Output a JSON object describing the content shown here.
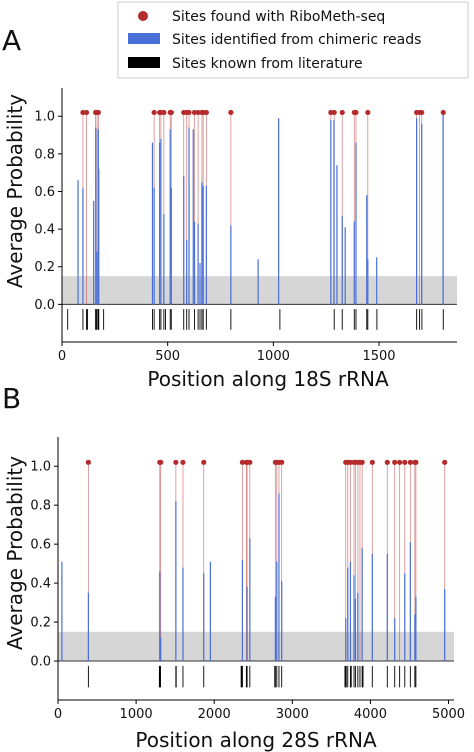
{
  "legend": {
    "items": [
      {
        "label": "Sites found with RiboMeth-seq",
        "color": "#b52a2a",
        "marker": "dot"
      },
      {
        "label": "Sites identified from chimeric reads",
        "color": "#4a6fd6",
        "marker": "bar"
      },
      {
        "label": "Sites known from literature",
        "color": "#000000",
        "marker": "bar"
      }
    ]
  },
  "chart_data": [
    {
      "type": "bar",
      "panel_label": "A",
      "xlabel": "Position along 18S rRNA",
      "ylabel": "Average Probability",
      "xlim": [
        0,
        1869
      ],
      "ylim": [
        -0.2,
        1.15
      ],
      "x_ticks": [
        0,
        500,
        1000,
        1500
      ],
      "y_ticks": [
        0.0,
        0.2,
        0.4,
        0.6,
        0.8,
        1.0
      ],
      "y_tick_labels": [
        "0.0",
        "0.2",
        "0.4",
        "0.6",
        "0.8",
        "1.0"
      ],
      "threshold_band": [
        0,
        0.15
      ],
      "chimeric": [
        {
          "x": 76,
          "y": 0.66
        },
        {
          "x": 99,
          "y": 0.62
        },
        {
          "x": 150,
          "y": 0.55
        },
        {
          "x": 160,
          "y": 0.94
        },
        {
          "x": 166,
          "y": 0.28
        },
        {
          "x": 172,
          "y": 0.93
        },
        {
          "x": 174,
          "y": 0.72
        },
        {
          "x": 428,
          "y": 0.86
        },
        {
          "x": 436,
          "y": 0.62
        },
        {
          "x": 462,
          "y": 0.86
        },
        {
          "x": 468,
          "y": 0.88
        },
        {
          "x": 482,
          "y": 0.48
        },
        {
          "x": 512,
          "y": 0.93
        },
        {
          "x": 517,
          "y": 0.62
        },
        {
          "x": 576,
          "y": 0.68
        },
        {
          "x": 590,
          "y": 0.34
        },
        {
          "x": 601,
          "y": 0.94
        },
        {
          "x": 621,
          "y": 0.93
        },
        {
          "x": 627,
          "y": 0.44
        },
        {
          "x": 644,
          "y": 0.43
        },
        {
          "x": 653,
          "y": 0.22
        },
        {
          "x": 662,
          "y": 0.65
        },
        {
          "x": 668,
          "y": 0.63
        },
        {
          "x": 683,
          "y": 0.63
        },
        {
          "x": 799,
          "y": 0.42
        },
        {
          "x": 928,
          "y": 0.24
        },
        {
          "x": 1025,
          "y": 0.99
        },
        {
          "x": 1272,
          "y": 0.98
        },
        {
          "x": 1287,
          "y": 0.98
        },
        {
          "x": 1301,
          "y": 0.74
        },
        {
          "x": 1326,
          "y": 0.47
        },
        {
          "x": 1340,
          "y": 0.41
        },
        {
          "x": 1383,
          "y": 0.44
        },
        {
          "x": 1391,
          "y": 0.86
        },
        {
          "x": 1442,
          "y": 0.58
        },
        {
          "x": 1447,
          "y": 0.24
        },
        {
          "x": 1489,
          "y": 0.25
        },
        {
          "x": 1678,
          "y": 0.99
        },
        {
          "x": 1702,
          "y": 0.96
        },
        {
          "x": 1803,
          "y": 1.01
        }
      ],
      "ribometh": [
        99,
        116,
        159,
        166,
        172,
        436,
        462,
        468,
        482,
        512,
        517,
        576,
        590,
        601,
        627,
        644,
        662,
        668,
        683,
        799,
        1272,
        1288,
        1326,
        1383,
        1391,
        1447,
        1678,
        1692,
        1702,
        1804
      ],
      "literature": [
        27,
        99,
        116,
        121,
        159,
        162,
        166,
        172,
        174,
        197,
        428,
        436,
        462,
        468,
        482,
        490,
        512,
        517,
        576,
        590,
        601,
        627,
        644,
        653,
        662,
        668,
        683,
        799,
        1031,
        1288,
        1326,
        1383,
        1391,
        1442,
        1447,
        1490,
        1678,
        1692,
        1703,
        1804
      ]
    },
    {
      "type": "bar",
      "panel_label": "B",
      "xlabel": "Position along 28S rRNA",
      "ylabel": "Average Probability",
      "xlim": [
        0,
        5070
      ],
      "ylim": [
        -0.2,
        1.15
      ],
      "x_ticks": [
        0,
        1000,
        2000,
        3000,
        4000,
        5000
      ],
      "y_ticks": [
        0.0,
        0.2,
        0.4,
        0.6,
        0.8,
        1.0
      ],
      "y_tick_labels": [
        "0.0",
        "0.2",
        "0.4",
        "0.6",
        "0.8",
        "1.0"
      ],
      "threshold_band": [
        0,
        0.15
      ],
      "chimeric": [
        {
          "x": 50,
          "y": 0.51
        },
        {
          "x": 389,
          "y": 0.35
        },
        {
          "x": 1303,
          "y": 0.46
        },
        {
          "x": 1315,
          "y": 0.12
        },
        {
          "x": 1509,
          "y": 0.82
        },
        {
          "x": 1600,
          "y": 0.48
        },
        {
          "x": 1866,
          "y": 0.45
        },
        {
          "x": 1951,
          "y": 0.51
        },
        {
          "x": 2361,
          "y": 0.52
        },
        {
          "x": 2421,
          "y": 0.38
        },
        {
          "x": 2456,
          "y": 0.63
        },
        {
          "x": 2783,
          "y": 0.33
        },
        {
          "x": 2801,
          "y": 0.51
        },
        {
          "x": 2829,
          "y": 0.86
        },
        {
          "x": 2864,
          "y": 0.41
        },
        {
          "x": 3684,
          "y": 0.22
        },
        {
          "x": 3710,
          "y": 0.48
        },
        {
          "x": 3744,
          "y": 0.51
        },
        {
          "x": 3790,
          "y": 0.44
        },
        {
          "x": 3808,
          "y": 0.32
        },
        {
          "x": 3839,
          "y": 0.35
        },
        {
          "x": 3894,
          "y": 0.58
        },
        {
          "x": 4024,
          "y": 0.55
        },
        {
          "x": 4216,
          "y": 0.55
        },
        {
          "x": 4311,
          "y": 0.22
        },
        {
          "x": 4440,
          "y": 0.45
        },
        {
          "x": 4511,
          "y": 0.61
        },
        {
          "x": 4569,
          "y": 0.24
        },
        {
          "x": 4582,
          "y": 0.33
        },
        {
          "x": 4951,
          "y": 0.37
        }
      ],
      "ribometh": [
        389,
        1303,
        1315,
        1509,
        1600,
        1866,
        2361,
        2412,
        2421,
        2456,
        2783,
        2801,
        2829,
        2864,
        3684,
        3710,
        3744,
        3790,
        3808,
        3839,
        3866,
        3894,
        4024,
        4216,
        4311,
        4374,
        4440,
        4511,
        4569,
        4582,
        4951
      ],
      "literature": [
        389,
        1298,
        1303,
        1313,
        1509,
        1513,
        1600,
        1866,
        2345,
        2351,
        2361,
        2412,
        2421,
        2456,
        2775,
        2783,
        2801,
        2829,
        2864,
        3674,
        3684,
        3690,
        3710,
        3744,
        3754,
        3790,
        3808,
        3839,
        3866,
        3894,
        3905,
        4024,
        4216,
        4311,
        4374,
        4440,
        4511,
        4569,
        4582
      ]
    }
  ]
}
